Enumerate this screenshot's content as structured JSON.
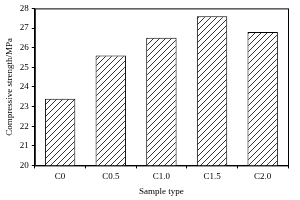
{
  "chart_data": {
    "type": "bar",
    "x_label": "Sample type",
    "y_label": "Compressive strength/MPa",
    "categories": [
      "C0",
      "C0.5",
      "C1.0",
      "C1.5",
      "C2.0"
    ],
    "values": [
      23.4,
      25.6,
      26.5,
      27.6,
      26.8
    ],
    "color": "#000000",
    "ylim": [
      20,
      28
    ],
    "yticks": [
      20,
      21,
      22,
      23,
      24,
      25,
      26,
      27,
      28
    ],
    "grid": false
  }
}
